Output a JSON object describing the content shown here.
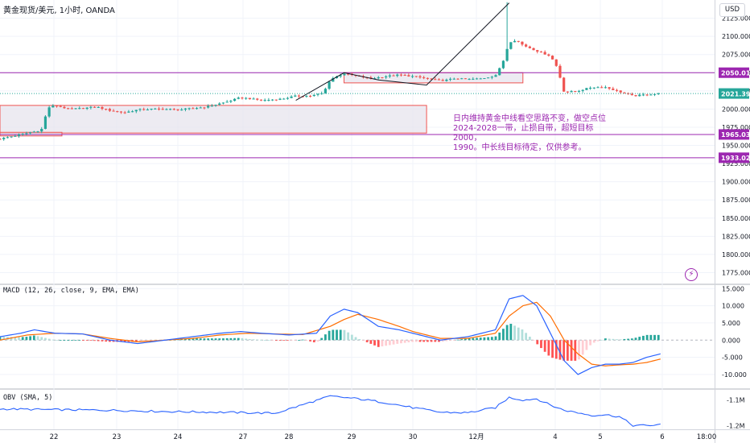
{
  "chart_title": "黄金现货/美元, 1小时, OANDA",
  "currency": "USD",
  "bolt_icon": "lightning-bolt-icon",
  "annotation": "日内维持黄金中线看空思路不变，做空点位\n2024-2028一带，止损自带，超短目标2000，\n1990。中长线目标待定，仅供参考。",
  "colors": {
    "up": "#26a69a",
    "down": "#ef5350",
    "level": "#9c27b0",
    "zone_fill": "#e7e4ed",
    "zone_border": "#ef5350",
    "macd_line": "#2962ff",
    "signal_line": "#ff6d00",
    "obv_line": "#2962ff",
    "last_price": "#26a69a"
  },
  "x_axis": {
    "ticks": [
      "22",
      "23",
      "24",
      "27",
      "28",
      "29",
      "30",
      "12月",
      "4",
      "5",
      "6",
      "18:00"
    ]
  },
  "price_panel": {
    "ylim": [
      1760,
      2150
    ],
    "ticks": [
      2125,
      2100,
      2075,
      2050,
      2025,
      2000,
      1975,
      1950,
      1925,
      1900,
      1875,
      1850,
      1825,
      1800,
      1775
    ],
    "tick_labels": [
      "2125.000",
      "2100.000",
      "2075.000",
      "2050.000",
      "2025.000",
      "2000.000",
      "1975.000",
      "1950.000",
      "1925.000",
      "1900.000",
      "1875.000",
      "1850.000",
      "1825.000",
      "1800.000",
      "1775.000"
    ],
    "levels": [
      {
        "value": 2050.015,
        "label": "2050.015"
      },
      {
        "value": 1965.037,
        "label": "1965.037"
      },
      {
        "value": 1933.021,
        "label": "1933.021"
      }
    ],
    "last_price": {
      "value": 2021.395,
      "label": "2021.395"
    }
  },
  "macd_panel": {
    "label": "MACD (12, 26, close, 9, EMA, EMA)",
    "ylim": [
      -14,
      16
    ],
    "ticks": [
      15,
      10,
      5,
      0,
      -5,
      -10
    ],
    "tick_labels": [
      "15.000",
      "10.000",
      "5.000",
      "0.000",
      "-5.000",
      "-10.000"
    ]
  },
  "obv_panel": {
    "label": "OBV (SMA, 5)",
    "ylim": [
      -1.215,
      -1.06
    ],
    "ticks": [
      -1.1,
      -1.2
    ],
    "tick_labels": [
      "-1.1M",
      "-1.2M"
    ]
  },
  "chart_data": [
    {
      "type": "candlestick",
      "title": "黄金现货/美元, 1小时, OANDA",
      "x_range": [
        0,
        100
      ],
      "ylim": [
        1760,
        2150
      ],
      "price_path": [
        [
          0,
          1959
        ],
        [
          2,
          1963
        ],
        [
          4,
          1967
        ],
        [
          6,
          1971
        ],
        [
          7,
          2002
        ],
        [
          8,
          2005
        ],
        [
          10,
          2000
        ],
        [
          12,
          2001
        ],
        [
          14,
          2003
        ],
        [
          16,
          1998
        ],
        [
          18,
          1995
        ],
        [
          20,
          1999
        ],
        [
          22,
          2000
        ],
        [
          24,
          2000
        ],
        [
          26,
          1999
        ],
        [
          28,
          2001
        ],
        [
          30,
          2003
        ],
        [
          33,
          2010
        ],
        [
          35,
          2016
        ],
        [
          38,
          2012
        ],
        [
          41,
          2014
        ],
        [
          43,
          2018
        ],
        [
          45,
          2018
        ],
        [
          47,
          2022
        ],
        [
          48,
          2041
        ],
        [
          50,
          2049
        ],
        [
          52,
          2045
        ],
        [
          54,
          2042
        ],
        [
          56,
          2045
        ],
        [
          58,
          2047
        ],
        [
          60,
          2045
        ],
        [
          62,
          2042
        ],
        [
          64,
          2039
        ],
        [
          65,
          2040
        ],
        [
          66,
          2042
        ],
        [
          68,
          2041
        ],
        [
          70,
          2042
        ],
        [
          72,
          2046
        ],
        [
          73,
          2062
        ],
        [
          74,
          2092
        ],
        [
          75,
          2095
        ],
        [
          76,
          2088
        ],
        [
          78,
          2080
        ],
        [
          80,
          2073
        ],
        [
          81,
          2057
        ],
        [
          82,
          2023
        ],
        [
          84,
          2025
        ],
        [
          86,
          2030
        ],
        [
          88,
          2030
        ],
        [
          90,
          2024
        ],
        [
          92,
          2018
        ],
        [
          94,
          2020
        ],
        [
          96,
          2021.395
        ]
      ],
      "spike": {
        "x": 73.8,
        "high": 2147
      },
      "trend_line": [
        [
          43,
          2012
        ],
        [
          50,
          2050
        ],
        [
          55,
          2040
        ],
        [
          62,
          2033
        ],
        [
          74,
          2146
        ]
      ],
      "zones": [
        {
          "x": [
            0,
            62
          ],
          "y": [
            1967,
            2005
          ]
        },
        {
          "x": [
            0,
            9
          ],
          "y": [
            1963,
            1968
          ]
        },
        {
          "x": [
            50,
            76
          ],
          "y": [
            2036,
            2050
          ]
        }
      ]
    },
    {
      "type": "macd",
      "macd": [
        [
          0,
          1
        ],
        [
          3,
          2
        ],
        [
          5,
          3
        ],
        [
          8,
          2
        ],
        [
          12,
          1.8
        ],
        [
          16,
          0
        ],
        [
          20,
          -1
        ],
        [
          24,
          0
        ],
        [
          28,
          1
        ],
        [
          32,
          2
        ],
        [
          35,
          2.5
        ],
        [
          38,
          2
        ],
        [
          42,
          1.5
        ],
        [
          46,
          2
        ],
        [
          48,
          7
        ],
        [
          50,
          9
        ],
        [
          52,
          8
        ],
        [
          55,
          4
        ],
        [
          58,
          3
        ],
        [
          60,
          2
        ],
        [
          64,
          0
        ],
        [
          68,
          1
        ],
        [
          72,
          3
        ],
        [
          74,
          12
        ],
        [
          76,
          13
        ],
        [
          78,
          10
        ],
        [
          80,
          2
        ],
        [
          82,
          -6
        ],
        [
          84,
          -10
        ],
        [
          86,
          -8
        ],
        [
          88,
          -7
        ],
        [
          90,
          -7
        ],
        [
          92,
          -6.5
        ],
        [
          94,
          -5
        ],
        [
          96,
          -4
        ]
      ],
      "signal": [
        [
          0,
          0
        ],
        [
          4,
          1.5
        ],
        [
          8,
          2
        ],
        [
          12,
          1.8
        ],
        [
          16,
          0.5
        ],
        [
          20,
          -0.5
        ],
        [
          24,
          0
        ],
        [
          28,
          0.5
        ],
        [
          32,
          1.5
        ],
        [
          36,
          2
        ],
        [
          40,
          1.8
        ],
        [
          44,
          1.6
        ],
        [
          48,
          4
        ],
        [
          50,
          6
        ],
        [
          52,
          7.5
        ],
        [
          55,
          6
        ],
        [
          58,
          4
        ],
        [
          60,
          2.5
        ],
        [
          64,
          0.5
        ],
        [
          68,
          0.5
        ],
        [
          72,
          2
        ],
        [
          74,
          7
        ],
        [
          76,
          10
        ],
        [
          78,
          11
        ],
        [
          80,
          7
        ],
        [
          82,
          0
        ],
        [
          84,
          -4
        ],
        [
          86,
          -7
        ],
        [
          88,
          -7.5
        ],
        [
          90,
          -7.2
        ],
        [
          92,
          -7
        ],
        [
          94,
          -6.5
        ],
        [
          96,
          -5.5
        ]
      ]
    },
    {
      "type": "line",
      "name": "OBV (SMA, 5)",
      "values": [
        [
          0,
          -1.135
        ],
        [
          8,
          -1.138
        ],
        [
          16,
          -1.14
        ],
        [
          24,
          -1.145
        ],
        [
          32,
          -1.148
        ],
        [
          40,
          -1.152
        ],
        [
          48,
          -1.085
        ],
        [
          52,
          -1.095
        ],
        [
          56,
          -1.11
        ],
        [
          60,
          -1.13
        ],
        [
          64,
          -1.148
        ],
        [
          68,
          -1.15
        ],
        [
          72,
          -1.13
        ],
        [
          74,
          -1.09
        ],
        [
          76,
          -1.1
        ],
        [
          78,
          -1.095
        ],
        [
          80,
          -1.12
        ],
        [
          82,
          -1.14
        ],
        [
          84,
          -1.15
        ],
        [
          86,
          -1.16
        ],
        [
          88,
          -1.158
        ],
        [
          90,
          -1.165
        ],
        [
          92,
          -1.2
        ],
        [
          94,
          -1.2
        ],
        [
          96,
          -1.197
        ]
      ]
    }
  ]
}
